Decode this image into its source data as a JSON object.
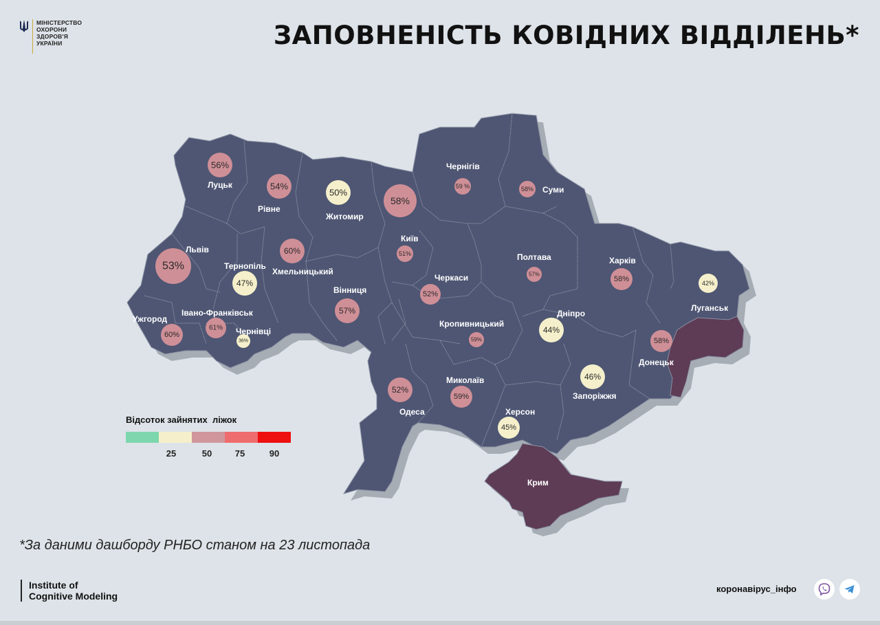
{
  "header": {
    "ministry_lines": [
      "МІНІСТЕРСТВО",
      "ОХОРОНИ",
      "ЗДОРОВ'Я",
      "УКРАЇНИ"
    ],
    "ministry_icon": "trident-icon",
    "title": "ЗАПОВНЕНІСТЬ КОВІДНИХ ВІДДІЛЕНЬ*"
  },
  "colors": {
    "region_fill": "#4e5673",
    "region_border": "#8a90a3",
    "occupied_fill": "#5e3c55",
    "shadow": "#a7adb4",
    "background": "#dde3e8"
  },
  "regions": [
    {
      "name": "Луцьк",
      "pct": "56%",
      "value": 56,
      "color": "#cf8f97"
    },
    {
      "name": "Рівне",
      "pct": "54%",
      "value": 54,
      "color": "#cf8f97"
    },
    {
      "name": "Житомир",
      "pct": "50%",
      "value": 50,
      "color": "#f5f0cb"
    },
    {
      "name": "Київ",
      "pct": "58%",
      "value": 58,
      "color": "#cf8f97"
    },
    {
      "name": "Київ",
      "pct": "51%",
      "value": 51,
      "color": "#cf8f97"
    },
    {
      "name": "Чернігів",
      "pct": "59 %",
      "value": 59,
      "color": "#cf8f97"
    },
    {
      "name": "Суми",
      "pct": "58%",
      "value": 58,
      "color": "#cf8f97"
    },
    {
      "name": "Львів",
      "pct": "53%",
      "value": 53,
      "color": "#cf8f97"
    },
    {
      "name": "Тернопіль",
      "pct": "47%",
      "value": 47,
      "color": "#f5f0cb"
    },
    {
      "name": "Хмельницький",
      "pct": "60%",
      "value": 60,
      "color": "#cf8f97"
    },
    {
      "name": "Вінниця",
      "pct": "57%",
      "value": 57,
      "color": "#cf8f97"
    },
    {
      "name": "Черкаси",
      "pct": "52%",
      "value": 52,
      "color": "#cf8f97"
    },
    {
      "name": "Полтава",
      "pct": "57%",
      "value": 57,
      "color": "#cf8f97"
    },
    {
      "name": "Харків",
      "pct": "58%",
      "value": 58,
      "color": "#cf8f97"
    },
    {
      "name": "Луганськ",
      "pct": "42%",
      "value": 42,
      "color": "#f5f0cb"
    },
    {
      "name": "Ужгород",
      "pct": "60%",
      "value": 60,
      "color": "#cf8f97"
    },
    {
      "name": "Івано-Франківськ",
      "pct": "61%",
      "value": 61,
      "color": "#cf8f97"
    },
    {
      "name": "Чернівці",
      "pct": "36%",
      "value": 36,
      "color": "#f5f0cb"
    },
    {
      "name": "Кропивницький",
      "pct": "59%",
      "value": 59,
      "color": "#cf8f97"
    },
    {
      "name": "Дніпро",
      "pct": "44%",
      "value": 44,
      "color": "#f5f0cb"
    },
    {
      "name": "Донецьк",
      "pct": "58%",
      "value": 58,
      "color": "#cf8f97"
    },
    {
      "name": "Одеса",
      "pct": "52%",
      "value": 52,
      "color": "#cf8f97"
    },
    {
      "name": "Миколаїв",
      "pct": "59%",
      "value": 59,
      "color": "#cf8f97"
    },
    {
      "name": "Запоріжжя",
      "pct": "46%",
      "value": 46,
      "color": "#f5f0cb"
    },
    {
      "name": "Херсон",
      "pct": "45%",
      "value": 45,
      "color": "#f5f0cb"
    },
    {
      "name": "Крим",
      "pct": "",
      "value": null,
      "color": ""
    }
  ],
  "legend": {
    "title": "Відсоток зайнятих  ліжок",
    "colors": [
      "#7dd6ae",
      "#f5f0cb",
      "#cf979c",
      "#ee6b6e",
      "#ee0f0f"
    ],
    "ticks": [
      "25",
      "50",
      "75",
      "90"
    ]
  },
  "footer": {
    "note": "*За даними дашборду РНБО станом на 23 листопада",
    "institute_lines": [
      "Institute of",
      "Cognitive Modeling"
    ],
    "site": "коронавірус_інфо",
    "social_icons": [
      "viber-icon",
      "telegram-icon"
    ]
  }
}
